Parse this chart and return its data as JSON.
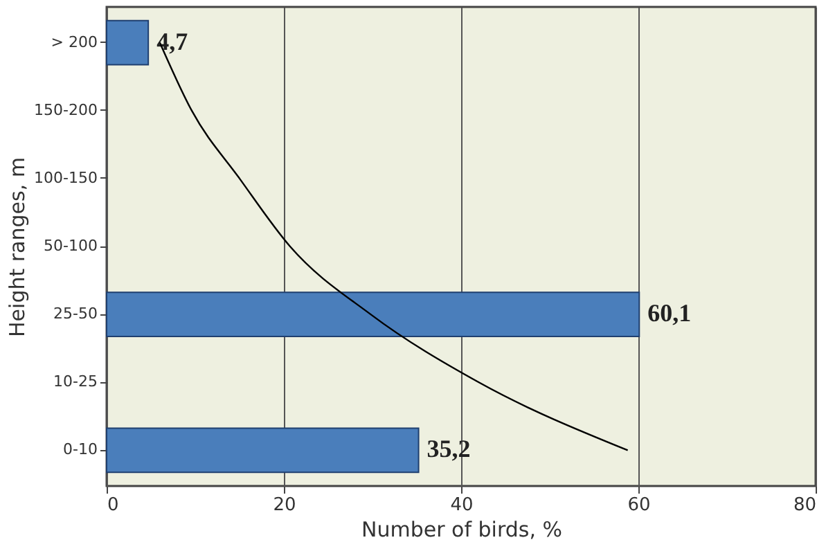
{
  "chart_data": {
    "type": "bar",
    "orientation": "horizontal",
    "xlabel": "Number of birds, %",
    "ylabel": "Height ranges, m",
    "categories": [
      "> 200",
      "150-200",
      "100-150",
      "50-100",
      "25-50",
      "10-25",
      "0-10"
    ],
    "series": [
      {
        "color": "#4a7ebb",
        "values": [
          4.7,
          null,
          null,
          null,
          60.1,
          null,
          35.2
        ],
        "value_labels": [
          "4,7",
          null,
          null,
          null,
          "60,1",
          null,
          "35,2"
        ]
      },
      {
        "type": "line",
        "color": "#000000",
        "values": [
          6,
          9.6,
          15,
          20.7,
          29.8,
          42,
          58.8
        ]
      }
    ],
    "xlim": [
      0,
      80
    ],
    "xticks": [
      0,
      20,
      40,
      60,
      80
    ],
    "grid": "x"
  }
}
